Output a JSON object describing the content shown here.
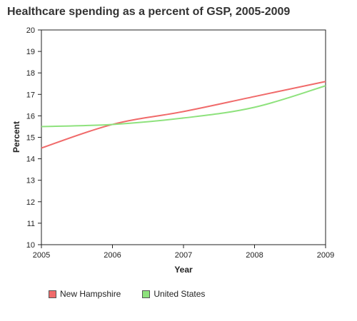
{
  "chart_title": "Healthcare spending as a percent of GSP, 2005-2009",
  "chart_data": {
    "type": "line",
    "title": "Healthcare spending as a percent of GSP, 2005-2009",
    "xlabel": "Year",
    "ylabel": "Percent",
    "x": [
      2005,
      2006,
      2007,
      2008,
      2009
    ],
    "xlim": [
      2005,
      2009
    ],
    "ylim": [
      10,
      20
    ],
    "y_ticks": [
      10,
      11,
      12,
      13,
      14,
      15,
      16,
      17,
      18,
      19,
      20
    ],
    "x_ticks": [
      2005,
      2006,
      2007,
      2008,
      2009
    ],
    "grid": false,
    "legend_position": "bottom-left",
    "series": [
      {
        "name": "New Hampshire",
        "color": "#f06a6a",
        "values": [
          14.5,
          15.6,
          16.2,
          16.9,
          17.6
        ]
      },
      {
        "name": "United States",
        "color": "#8ee27d",
        "values": [
          15.5,
          15.6,
          15.9,
          16.4,
          17.4
        ]
      }
    ]
  }
}
